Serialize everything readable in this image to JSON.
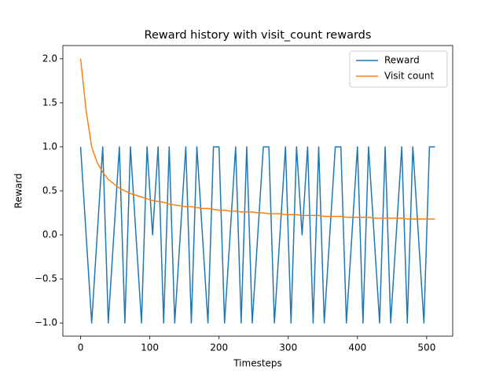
{
  "chart_data": {
    "type": "line",
    "title": "Reward history with visit_count rewards",
    "x_label": "Timesteps",
    "y_label": "Reward",
    "x": [
      0,
      8,
      16,
      24,
      32,
      40,
      48,
      56,
      64,
      72,
      80,
      88,
      96,
      104,
      112,
      120,
      128,
      136,
      144,
      152,
      160,
      168,
      176,
      184,
      192,
      200,
      208,
      216,
      224,
      232,
      240,
      248,
      256,
      264,
      272,
      280,
      288,
      296,
      304,
      312,
      320,
      328,
      336,
      344,
      352,
      360,
      368,
      376,
      384,
      392,
      400,
      408,
      416,
      424,
      432,
      440,
      448,
      456,
      464,
      472,
      480,
      488,
      496,
      504,
      512
    ],
    "series": [
      {
        "name": "Reward",
        "color": "#1f77b4",
        "values": [
          1,
          0,
          -1,
          0,
          1,
          -1,
          0,
          1,
          -1,
          1,
          0,
          -1,
          1,
          0,
          1,
          -1,
          1,
          -1,
          0,
          1,
          -1,
          1,
          0,
          -1,
          1,
          1,
          -1,
          0,
          1,
          -1,
          1,
          -1,
          0,
          1,
          1,
          -1,
          0,
          1,
          -1,
          1,
          0,
          1,
          -1,
          1,
          -1,
          0,
          1,
          1,
          -1,
          0,
          1,
          -1,
          1,
          0,
          -1,
          1,
          -1,
          0,
          1,
          -1,
          1,
          0,
          -1,
          1,
          1
        ]
      },
      {
        "name": "Visit count",
        "color": "#ff7f0e",
        "values": [
          2.0,
          1.41,
          1.0,
          0.82,
          0.71,
          0.63,
          0.58,
          0.53,
          0.5,
          0.47,
          0.45,
          0.43,
          0.41,
          0.39,
          0.38,
          0.37,
          0.35,
          0.34,
          0.33,
          0.32,
          0.32,
          0.31,
          0.3,
          0.3,
          0.29,
          0.28,
          0.28,
          0.27,
          0.27,
          0.26,
          0.26,
          0.26,
          0.25,
          0.25,
          0.24,
          0.24,
          0.24,
          0.23,
          0.23,
          0.23,
          0.22,
          0.22,
          0.22,
          0.22,
          0.21,
          0.21,
          0.21,
          0.21,
          0.2,
          0.2,
          0.2,
          0.2,
          0.2,
          0.19,
          0.19,
          0.19,
          0.19,
          0.19,
          0.19,
          0.18,
          0.18,
          0.18,
          0.18,
          0.18,
          0.18
        ]
      }
    ],
    "xlim": [
      -25.6,
      537.6
    ],
    "ylim": [
      -1.15,
      2.15
    ],
    "xticks": [
      0,
      100,
      200,
      300,
      400,
      500
    ],
    "yticks": [
      {
        "value": -1,
        "label": "−1.0"
      },
      {
        "value": -0.5,
        "label": "−0.5"
      },
      {
        "value": 0,
        "label": "0.0"
      },
      0.5,
      {
        "value": 1,
        "label": "1.0"
      },
      1.5,
      {
        "value": 2,
        "label": "2.0"
      }
    ],
    "legend": "upper right",
    "grid": false
  }
}
